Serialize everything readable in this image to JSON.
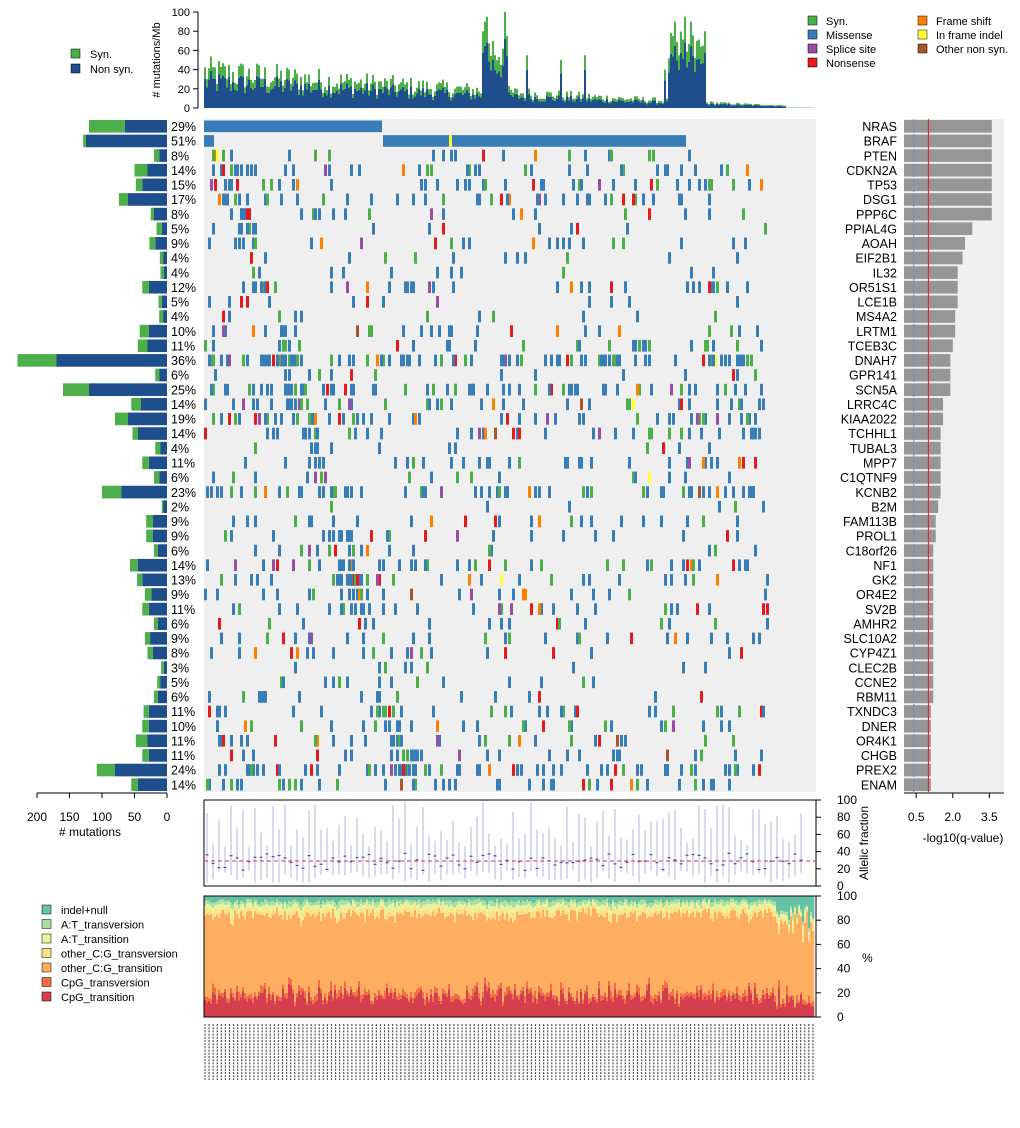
{
  "chart_data": [
    {
      "id": "tmb",
      "type": "bar",
      "ylabel": "# mutations/Mb",
      "ylim": [
        0,
        100
      ],
      "yticks": [
        0,
        20,
        40,
        60,
        80,
        100
      ],
      "legend": [
        {
          "label": "Syn.",
          "color": "#4daf4a"
        },
        {
          "label": "Non syn.",
          "color": "#1f4e8c"
        }
      ],
      "peaks": [
        {
          "sample": 139,
          "value": 80
        },
        {
          "sample": 140,
          "value": 90
        },
        {
          "sample": 141,
          "value": 95
        },
        {
          "sample": 144,
          "value": 70
        },
        {
          "sample": 150,
          "value": 100
        },
        {
          "sample": 151,
          "value": 75
        },
        {
          "sample": 161,
          "value": 55
        },
        {
          "sample": 178,
          "value": 50
        },
        {
          "sample": 190,
          "value": 55
        },
        {
          "sample": 230,
          "value": 40
        },
        {
          "sample": 234,
          "value": 75
        },
        {
          "sample": 235,
          "value": 90
        },
        {
          "sample": 237,
          "value": 55
        },
        {
          "sample": 240,
          "value": 95
        },
        {
          "sample": 243,
          "value": 90
        },
        {
          "sample": 246,
          "value": 70
        },
        {
          "sample": 250,
          "value": 80
        }
      ]
    },
    {
      "id": "oncoprint",
      "type": "heatmap",
      "legend": [
        {
          "label": "Syn.",
          "color": "#4daf4a"
        },
        {
          "label": "Missense",
          "color": "#377eb8"
        },
        {
          "label": "Splice site",
          "color": "#984ea3"
        },
        {
          "label": "Nonsense",
          "color": "#e41a1c"
        },
        {
          "label": "Frame shift",
          "color": "#ff7f00"
        },
        {
          "label": "In frame indel",
          "color": "#ffff33"
        },
        {
          "label": "Other non syn.",
          "color": "#a65628"
        }
      ],
      "genes": [
        "NRAS",
        "BRAF",
        "PTEN",
        "CDKN2A",
        "TP53",
        "DSG1",
        "PPP6C",
        "PPIAL4G",
        "AOAH",
        "EIF2B1",
        "IL32",
        "OR51S1",
        "LCE1B",
        "MS4A2",
        "LRTM1",
        "TCEB3C",
        "DNAH7",
        "GPR141",
        "SCN5A",
        "LRRC4C",
        "KIAA2022",
        "TCHHL1",
        "TUBAL3",
        "MPP7",
        "C1QTNF9",
        "KCNB2",
        "B2M",
        "FAM113B",
        "PROL1",
        "C18orf26",
        "NF1",
        "GK2",
        "OR4E2",
        "SV2B",
        "AMHR2",
        "SLC10A2",
        "CYP4Z1",
        "CLEC2B",
        "CCNE2",
        "RBM11",
        "TXNDC3",
        "DNER",
        "OR4K1",
        "CHGB",
        "PREX2",
        "ENAM"
      ],
      "percentages": [
        "29%",
        "51%",
        "8%",
        "14%",
        "15%",
        "17%",
        "8%",
        "5%",
        "9%",
        "4%",
        "4%",
        "12%",
        "5%",
        "4%",
        "10%",
        "11%",
        "36%",
        "6%",
        "25%",
        "14%",
        "19%",
        "14%",
        "4%",
        "11%",
        "6%",
        "23%",
        "2%",
        "9%",
        "9%",
        "6%",
        "14%",
        "13%",
        "9%",
        "11%",
        "6%",
        "9%",
        "8%",
        "3%",
        "5%",
        "6%",
        "11%",
        "10%",
        "11%",
        "11%",
        "24%",
        "14%"
      ]
    },
    {
      "id": "mutation_counts",
      "type": "bar",
      "xlabel": "# mutations",
      "xticks": [
        200,
        150,
        100,
        50,
        0
      ],
      "syn": [
        55,
        4,
        8,
        20,
        10,
        14,
        5,
        8,
        9,
        5,
        5,
        10,
        5,
        6,
        14,
        15,
        60,
        6,
        40,
        15,
        20,
        8,
        8,
        10,
        8,
        30,
        2,
        10,
        10,
        6,
        12,
        8,
        10,
        10,
        6,
        8,
        8,
        4,
        5,
        6,
        8,
        10,
        18,
        10,
        28,
        10
      ],
      "nonsyn": [
        65,
        125,
        12,
        30,
        38,
        60,
        20,
        8,
        18,
        6,
        5,
        28,
        8,
        6,
        28,
        30,
        170,
        12,
        120,
        40,
        60,
        45,
        10,
        28,
        12,
        70,
        6,
        22,
        22,
        14,
        45,
        38,
        24,
        28,
        14,
        26,
        22,
        5,
        10,
        14,
        28,
        28,
        30,
        28,
        80,
        45
      ]
    },
    {
      "id": "qvalues",
      "type": "bar",
      "xlabel": "-log10(q-value)",
      "xticks": [
        "0.5",
        "2.0",
        "3.5"
      ],
      "threshold_red": 1.0,
      "threshold_blue": 0.4,
      "values": [
        3.6,
        3.6,
        3.6,
        3.6,
        3.6,
        3.6,
        3.6,
        2.8,
        2.5,
        2.4,
        2.2,
        2.2,
        2.2,
        2.1,
        2.1,
        2.0,
        1.9,
        1.9,
        1.9,
        1.6,
        1.6,
        1.5,
        1.5,
        1.5,
        1.5,
        1.5,
        1.4,
        1.3,
        1.3,
        1.2,
        1.2,
        1.2,
        1.2,
        1.2,
        1.2,
        1.2,
        1.2,
        1.2,
        1.2,
        1.2,
        1.1,
        1.1,
        1.1,
        1.1,
        1.1,
        1.1
      ]
    },
    {
      "id": "allelic_fraction",
      "type": "scatter",
      "ylabel": "Allelic fraction",
      "ylim": [
        0,
        100
      ],
      "yticks": [
        0,
        20,
        40,
        60,
        80,
        100
      ],
      "median_line": 29
    },
    {
      "id": "spectrum",
      "type": "area",
      "ylabel": "%",
      "ylim": [
        0,
        100
      ],
      "yticks": [
        0,
        20,
        40,
        60,
        80,
        100
      ],
      "categories": [
        {
          "label": "indel+null",
          "color": "#66c2a5",
          "mean_share": 4
        },
        {
          "label": "A:T_transversion",
          "color": "#abdda4",
          "mean_share": 3
        },
        {
          "label": "A:T_transition",
          "color": "#e6f598",
          "mean_share": 4
        },
        {
          "label": "other_C:G_transversion",
          "color": "#fee08b",
          "mean_share": 4
        },
        {
          "label": "other_C:G_transition",
          "color": "#fdae61",
          "mean_share": 65
        },
        {
          "label": "CpG_transversion",
          "color": "#f46d43",
          "mean_share": 4
        },
        {
          "label": "CpG_transition",
          "color": "#d53e4f",
          "mean_share": 16
        }
      ]
    }
  ],
  "colors": {
    "syn": "#4daf4a",
    "nonsyn": "#1f4e8c",
    "missense": "#377eb8",
    "splice": "#984ea3",
    "nonsense": "#e41a1c",
    "frameshift": "#ff7f00",
    "inframe": "#ffff33",
    "other": "#a65628",
    "grid_bg": "#efefef",
    "qbar": "#969696",
    "qline_red": "#e41a1c",
    "qline_blue": "#8080d0",
    "af_line": "#9b8fd6",
    "af_median": "#cc3366"
  }
}
